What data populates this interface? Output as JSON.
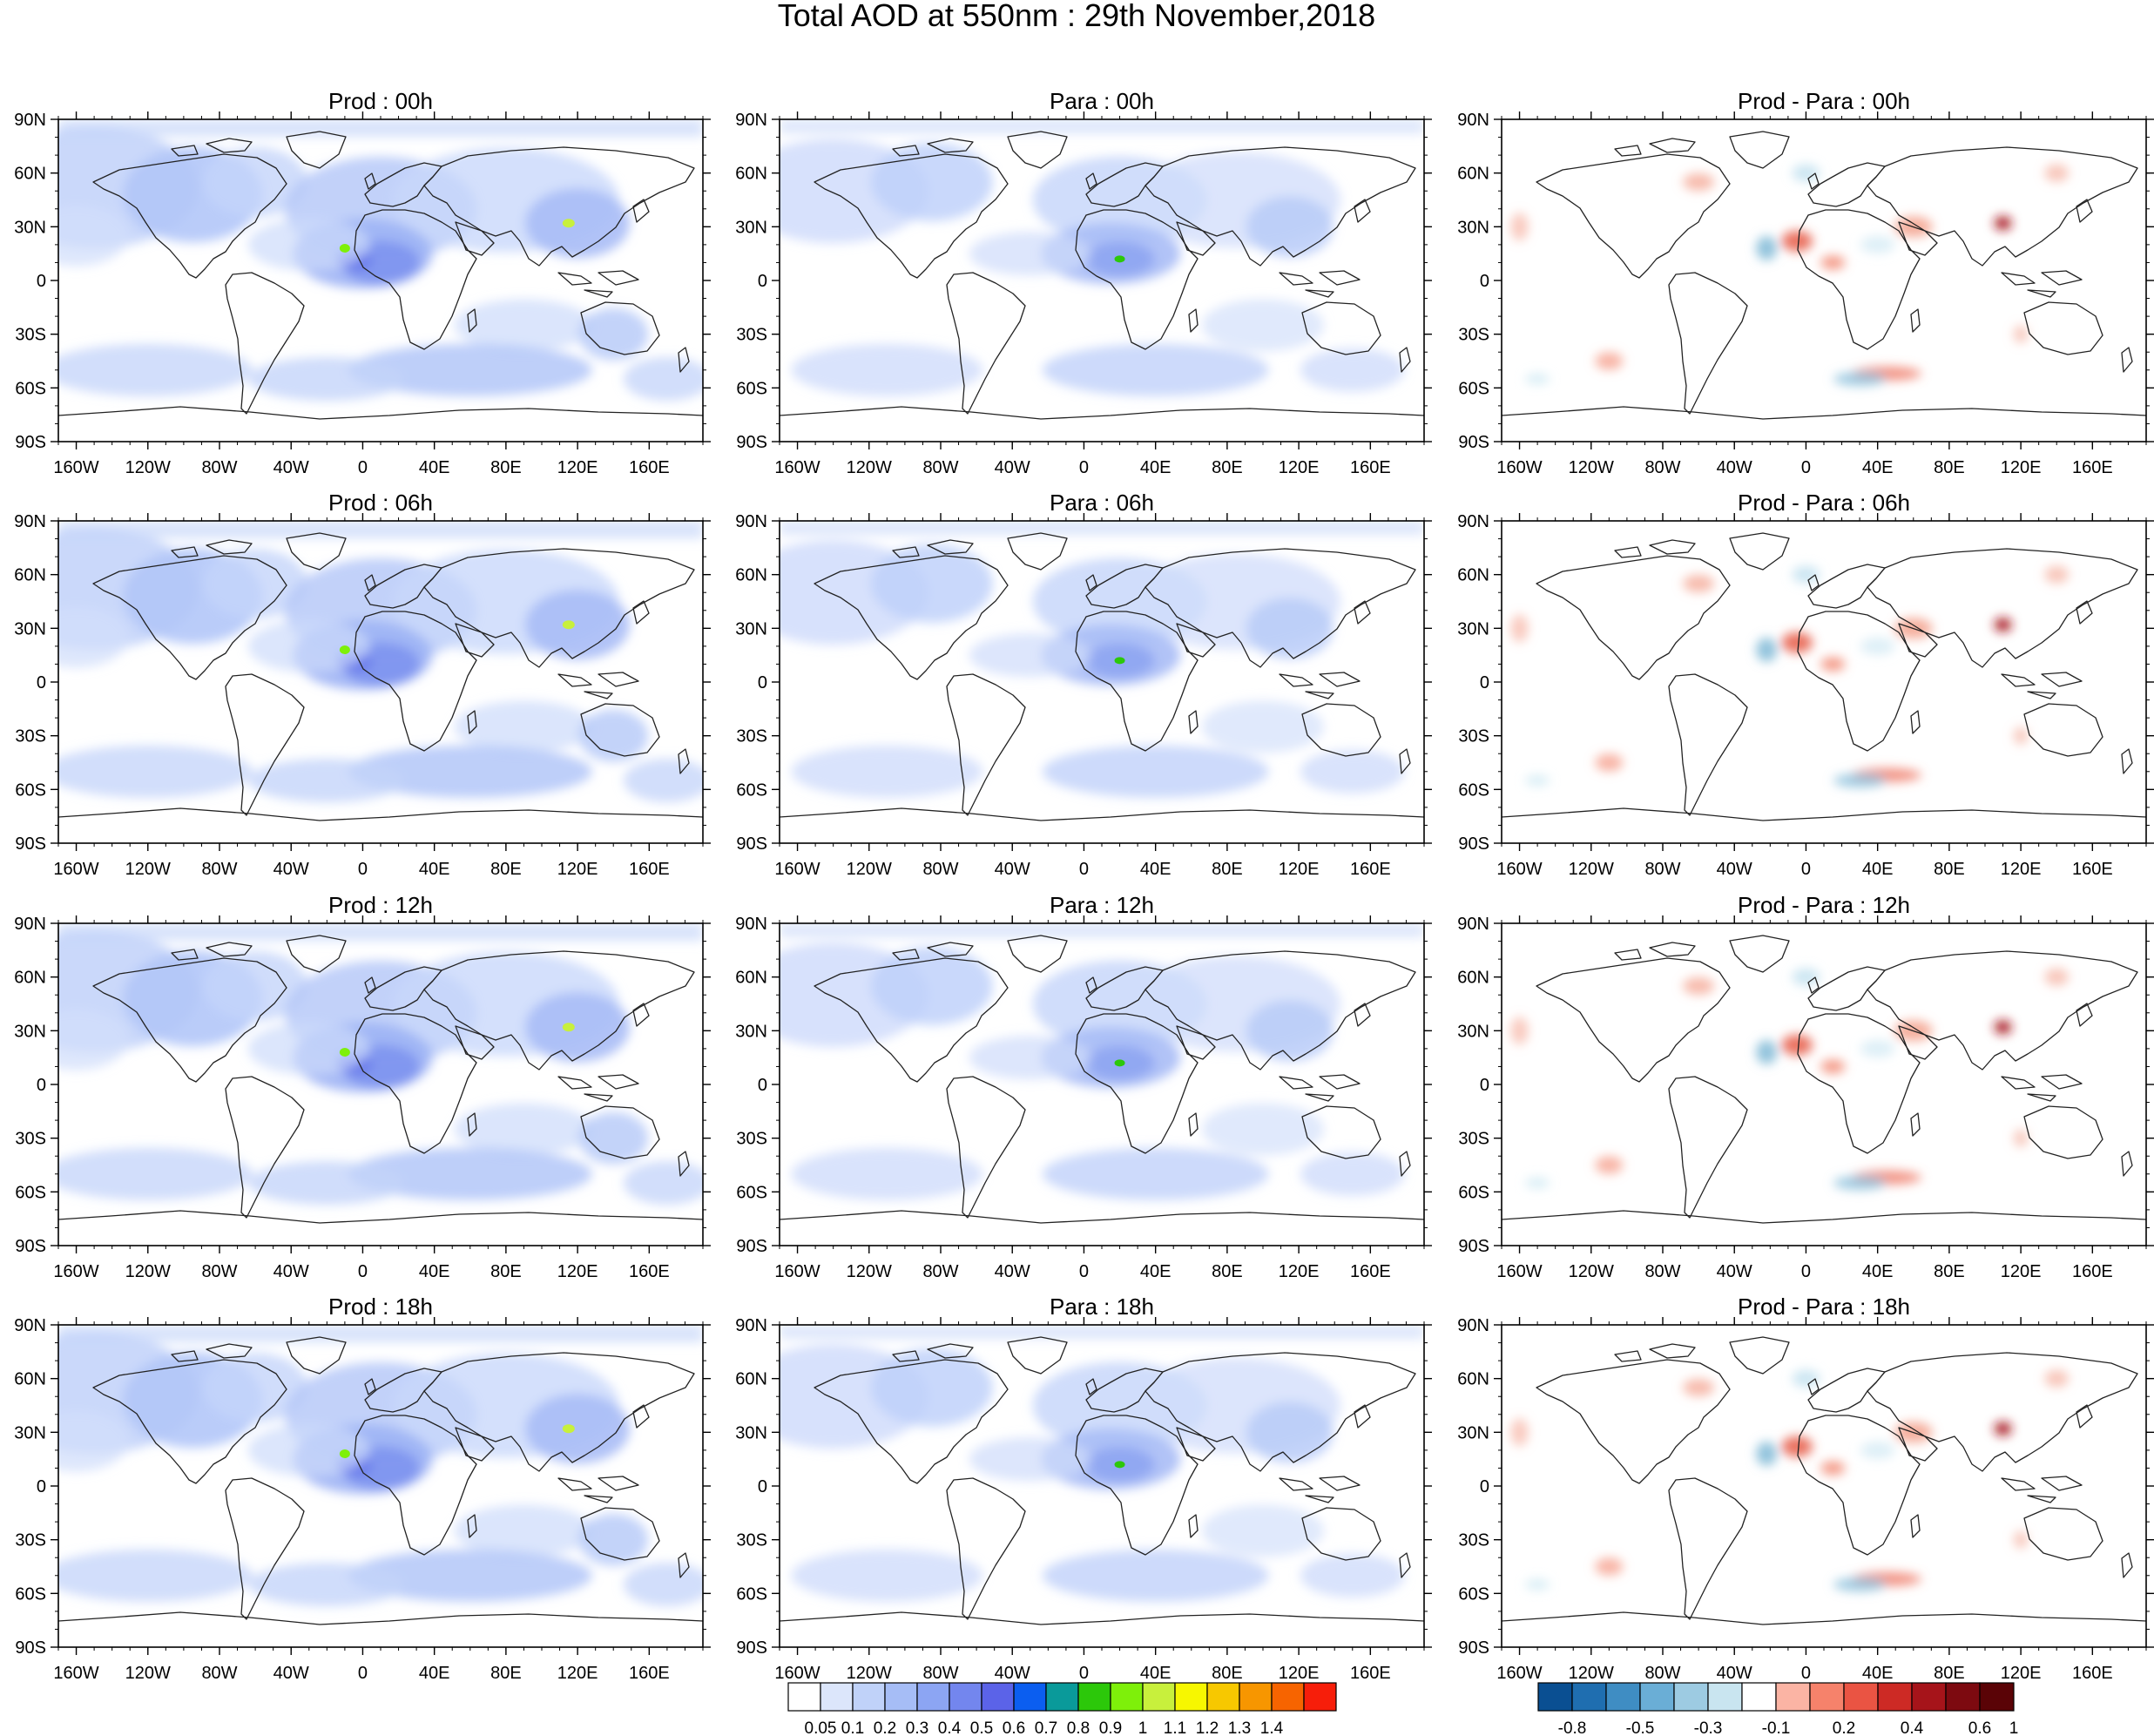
{
  "title": "Total AOD at 550nm : 29th November,2018",
  "columns": [
    {
      "prefix": "Prod :",
      "kind": "prod"
    },
    {
      "prefix": "Para :",
      "kind": "para"
    },
    {
      "prefix": "Prod - Para :",
      "kind": "diff"
    }
  ],
  "hours": [
    "00h",
    "06h",
    "12h",
    "18h"
  ],
  "lat_labels": [
    "90N",
    "60N",
    "30N",
    "0",
    "30S",
    "60S",
    "90S"
  ],
  "lon_labels": [
    "160W",
    "120W",
    "80W",
    "40W",
    "0",
    "40E",
    "80E",
    "120E",
    "160E"
  ],
  "colorbars": {
    "aod": {
      "labels": [
        "0.05",
        "0.1",
        "0.2",
        "0.3",
        "0.4",
        "0.5",
        "0.6",
        "0.7",
        "0.8",
        "0.9",
        "1",
        "1.1",
        "1.2",
        "1.3",
        "1.4"
      ],
      "colors": [
        "#ffffff",
        "#dce6fb",
        "#c0d2f9",
        "#a6bdf6",
        "#8ca5f3",
        "#7386ee",
        "#5b63e8",
        "#0b5ef0",
        "#0a9a9a",
        "#2cc80a",
        "#7ef00a",
        "#c8f03c",
        "#f7f700",
        "#f7c800",
        "#f79600",
        "#f76400",
        "#f71e0a"
      ]
    },
    "diff": {
      "labels": [
        "-0.8",
        "-0.5",
        "-0.3",
        "-0.1",
        "0.2",
        "0.4",
        "0.6",
        "1"
      ],
      "colors": [
        "#0a4f92",
        "#1f6eb0",
        "#3f8dc3",
        "#6aaed6",
        "#9dcbe2",
        "#c9e5f0",
        "#ffffff",
        "#fbb4a4",
        "#f6826b",
        "#ea5443",
        "#cd2a25",
        "#a6141a",
        "#7d0a10",
        "#5a0306"
      ],
      "tick_slots": [
        1,
        3,
        5,
        7,
        9,
        11,
        13,
        14
      ]
    }
  }
}
